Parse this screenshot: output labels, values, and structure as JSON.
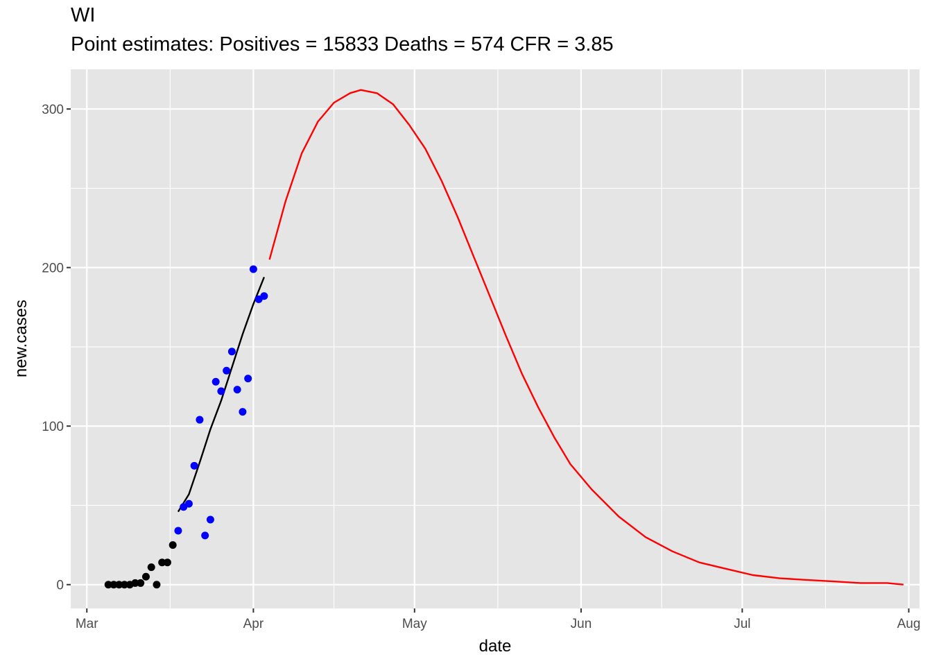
{
  "chart_data": {
    "type": "scatter",
    "title": "WI",
    "subtitle": "Point estimates: Positives = 15833 Deaths = 574 CFR = 3.85",
    "xlabel": "date",
    "ylabel": "new.cases",
    "xlim": [
      "2020-02-27",
      "2020-08-03"
    ],
    "ylim": [
      -15,
      325
    ],
    "x_ticks": [
      {
        "date": "2020-03-01",
        "label": "Mar"
      },
      {
        "date": "2020-04-01",
        "label": "Apr"
      },
      {
        "date": "2020-05-01",
        "label": "May"
      },
      {
        "date": "2020-06-01",
        "label": "Jun"
      },
      {
        "date": "2020-07-01",
        "label": "Jul"
      },
      {
        "date": "2020-08-01",
        "label": "Aug"
      }
    ],
    "y_ticks": [
      0,
      100,
      200,
      300
    ],
    "grid": true,
    "legend": "none",
    "colors": {
      "panel_background": "#e5e5e5",
      "grid": "#ffffff",
      "early_points": "#000000",
      "fit_points": "#0000ff",
      "fit_line": "#000000",
      "projection_line": "#ff0000"
    },
    "series": [
      {
        "kind": "points",
        "color": "#000000",
        "points": [
          [
            "2020-03-05",
            0
          ],
          [
            "2020-03-06",
            0
          ],
          [
            "2020-03-07",
            0
          ],
          [
            "2020-03-08",
            0
          ],
          [
            "2020-03-09",
            0
          ],
          [
            "2020-03-10",
            1
          ],
          [
            "2020-03-11",
            1
          ],
          [
            "2020-03-12",
            5
          ],
          [
            "2020-03-13",
            11
          ],
          [
            "2020-03-14",
            0
          ],
          [
            "2020-03-15",
            14
          ],
          [
            "2020-03-16",
            14
          ],
          [
            "2020-03-17",
            25
          ]
        ]
      },
      {
        "kind": "points",
        "color": "#0000ff",
        "points": [
          [
            "2020-03-18",
            34
          ],
          [
            "2020-03-19",
            49
          ],
          [
            "2020-03-20",
            51
          ],
          [
            "2020-03-21",
            75
          ],
          [
            "2020-03-22",
            104
          ],
          [
            "2020-03-23",
            31
          ],
          [
            "2020-03-24",
            41
          ],
          [
            "2020-03-25",
            128
          ],
          [
            "2020-03-26",
            122
          ],
          [
            "2020-03-27",
            135
          ],
          [
            "2020-03-28",
            147
          ],
          [
            "2020-03-29",
            123
          ],
          [
            "2020-03-30",
            109
          ],
          [
            "2020-03-31",
            130
          ],
          [
            "2020-04-01",
            199
          ],
          [
            "2020-04-02",
            180
          ],
          [
            "2020-04-03",
            182
          ]
        ]
      },
      {
        "kind": "line",
        "color": "#000000",
        "points": [
          [
            "2020-03-18",
            46
          ],
          [
            "2020-03-20",
            57
          ],
          [
            "2020-03-22",
            77
          ],
          [
            "2020-03-24",
            98
          ],
          [
            "2020-03-26",
            116
          ],
          [
            "2020-03-28",
            137
          ],
          [
            "2020-03-30",
            158
          ],
          [
            "2020-04-01",
            177
          ],
          [
            "2020-04-03",
            194
          ]
        ]
      },
      {
        "kind": "line",
        "color": "#ff0000",
        "points": [
          [
            "2020-04-04",
            205
          ],
          [
            "2020-04-07",
            242
          ],
          [
            "2020-04-10",
            272
          ],
          [
            "2020-04-13",
            292
          ],
          [
            "2020-04-16",
            304
          ],
          [
            "2020-04-19",
            310
          ],
          [
            "2020-04-21",
            312
          ],
          [
            "2020-04-24",
            310
          ],
          [
            "2020-04-27",
            303
          ],
          [
            "2020-04-30",
            290
          ],
          [
            "2020-05-03",
            275
          ],
          [
            "2020-05-06",
            255
          ],
          [
            "2020-05-09",
            232
          ],
          [
            "2020-05-12",
            207
          ],
          [
            "2020-05-15",
            182
          ],
          [
            "2020-05-18",
            157
          ],
          [
            "2020-05-21",
            133
          ],
          [
            "2020-05-24",
            112
          ],
          [
            "2020-05-27",
            93
          ],
          [
            "2020-05-30",
            76
          ],
          [
            "2020-06-03",
            60
          ],
          [
            "2020-06-08",
            43
          ],
          [
            "2020-06-13",
            30
          ],
          [
            "2020-06-18",
            21
          ],
          [
            "2020-06-23",
            14
          ],
          [
            "2020-06-28",
            10
          ],
          [
            "2020-07-03",
            6
          ],
          [
            "2020-07-08",
            4
          ],
          [
            "2020-07-13",
            3
          ],
          [
            "2020-07-18",
            2
          ],
          [
            "2020-07-23",
            1
          ],
          [
            "2020-07-28",
            1
          ],
          [
            "2020-07-31",
            0
          ]
        ]
      }
    ]
  }
}
